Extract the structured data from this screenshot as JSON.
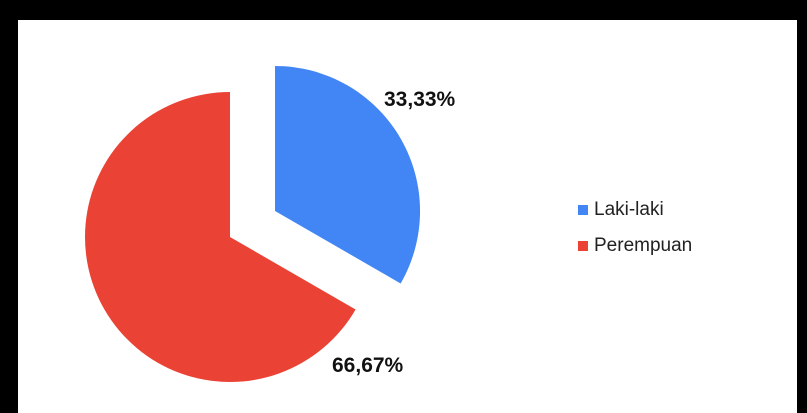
{
  "chart_data": {
    "type": "pie",
    "title": "",
    "legend_position": "right",
    "exploded_slice": "Laki-laki",
    "slices": [
      {
        "label": "Laki-laki",
        "value": 33.33,
        "display": "33,33%",
        "color": "#4285F4"
      },
      {
        "label": "Perempuan",
        "value": 66.67,
        "display": "66,67%",
        "color": "#EA4335"
      }
    ]
  }
}
